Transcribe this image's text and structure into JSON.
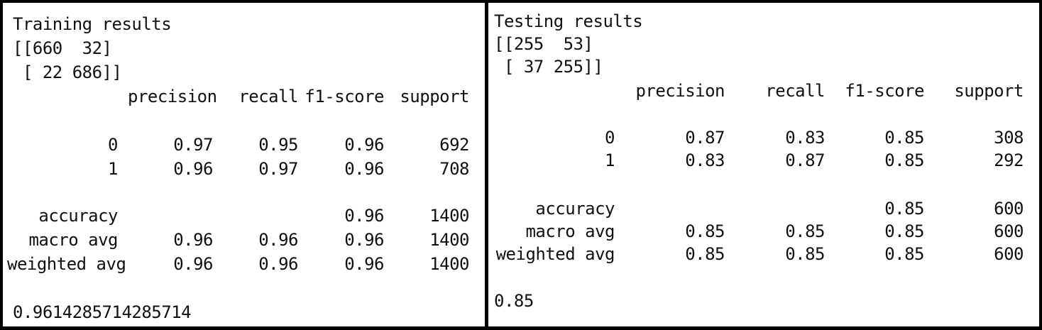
{
  "training": {
    "title": "Training results",
    "matrix": [
      "[[660  32]",
      " [ 22 686]]"
    ],
    "headers": [
      "precision",
      "recall",
      "f1-score",
      "support"
    ],
    "rows": [
      {
        "label": "0",
        "cells": [
          "0.97",
          "0.95",
          "0.96",
          "692"
        ]
      },
      {
        "label": "1",
        "cells": [
          "0.96",
          "0.97",
          "0.96",
          "708"
        ]
      },
      {
        "label": "accuracy",
        "cells": [
          "",
          "",
          "0.96",
          "1400"
        ]
      },
      {
        "label": "macro avg",
        "cells": [
          "0.96",
          "0.96",
          "0.96",
          "1400"
        ]
      },
      {
        "label": "weighted avg",
        "cells": [
          "0.96",
          "0.96",
          "0.96",
          "1400"
        ]
      }
    ],
    "score": "0.9614285714285714"
  },
  "testing": {
    "title": "Testing results",
    "matrix": [
      "[[255  53]",
      " [ 37 255]]"
    ],
    "headers": [
      "precision",
      "recall",
      "f1-score",
      "support"
    ],
    "rows": [
      {
        "label": "0",
        "cells": [
          "0.87",
          "0.83",
          "0.85",
          "308"
        ]
      },
      {
        "label": "1",
        "cells": [
          "0.83",
          "0.87",
          "0.85",
          "292"
        ]
      },
      {
        "label": "accuracy",
        "cells": [
          "",
          "",
          "0.85",
          "600"
        ]
      },
      {
        "label": "macro avg",
        "cells": [
          "0.85",
          "0.85",
          "0.85",
          "600"
        ]
      },
      {
        "label": "weighted avg",
        "cells": [
          "0.85",
          "0.85",
          "0.85",
          "600"
        ]
      }
    ],
    "score": "0.85"
  }
}
